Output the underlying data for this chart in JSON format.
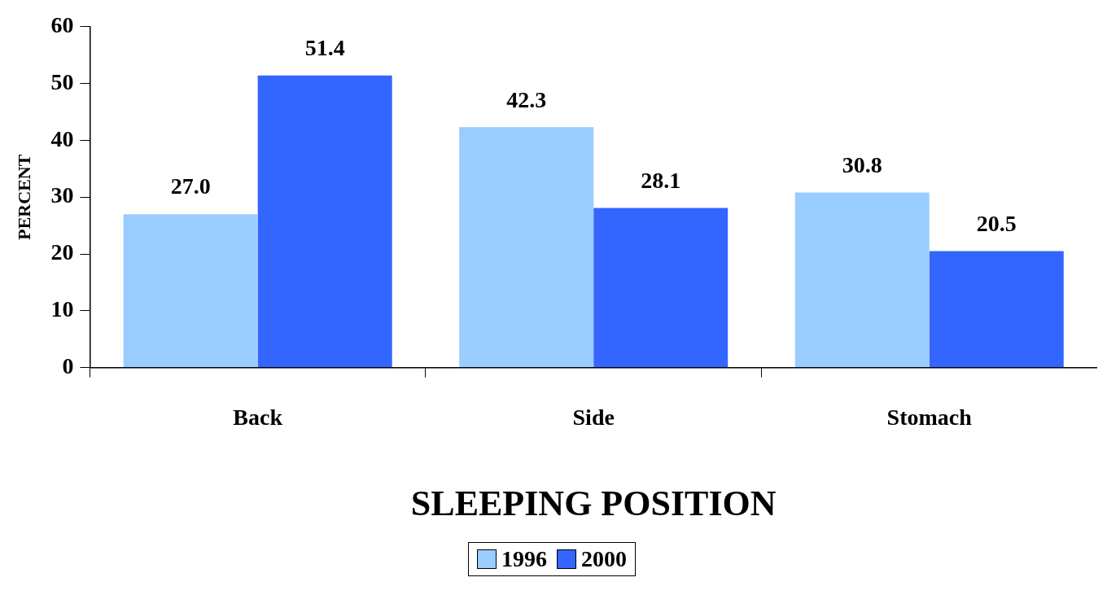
{
  "chart_data": {
    "type": "bar",
    "xlabel": "SLEEPING POSITION",
    "ylabel": "PERCENT",
    "categories": [
      "Back",
      "Side",
      "Stomach"
    ],
    "series": [
      {
        "name": "1996",
        "color": "#99ccff",
        "values": [
          27.0,
          42.3,
          30.8
        ],
        "value_labels": [
          "27.0",
          "42.3",
          "30.8"
        ]
      },
      {
        "name": "2000",
        "color": "#3366ff",
        "values": [
          51.4,
          28.1,
          20.5
        ],
        "value_labels": [
          "51.4",
          "28.1",
          "20.5"
        ]
      }
    ],
    "ylim": [
      0,
      60
    ],
    "yticks": [
      0,
      10,
      20,
      30,
      40,
      50,
      60
    ],
    "legend": "bottom"
  }
}
